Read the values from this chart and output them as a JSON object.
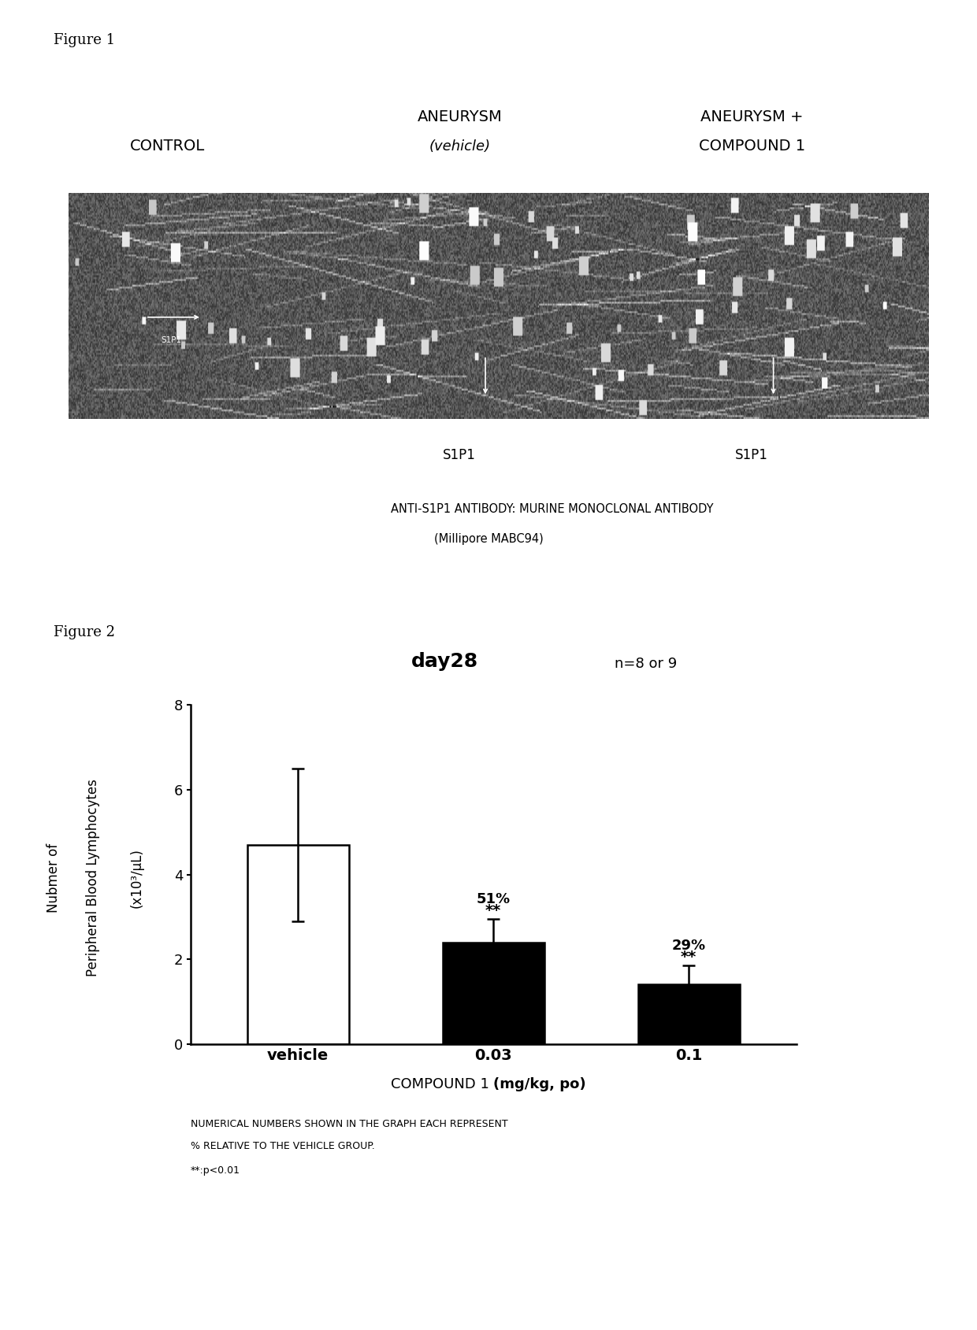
{
  "fig1_label": "Figure 1",
  "fig2_label": "Figure 2",
  "col1_label": "CONTROL",
  "col2_label_l1": "ANEURYSM",
  "col2_label_l2": "(vehicle)",
  "col3_label_l1": "ANEURYSM +",
  "col3_label_l2": "COMPOUND 1",
  "s1p1_label": "S1P1",
  "antibody_line1": "ANTI-S1P1 ANTIBODY: MURINE MONOCLONAL ANTIBODY",
  "antibody_line2": "(Millipore MABC94)",
  "chart_title_bold": "day28",
  "chart_title_normal": "n=8 or 9",
  "ylabel_line1": "Nubmer of",
  "ylabel_line2": "Peripheral Blood Lymphocytes",
  "ylabel_line3": "(x10³/μL)",
  "xlabel_normal": "COMPOUND 1 ",
  "xlabel_bold": "(mg/kg, po)",
  "categories": [
    "vehicle",
    "0.03",
    "0.1"
  ],
  "bar_values": [
    4.7,
    2.4,
    1.4
  ],
  "bar_errors": [
    1.8,
    0.55,
    0.45
  ],
  "bar_colors": [
    "white",
    "black",
    "black"
  ],
  "bar_edge_colors": [
    "black",
    "black",
    "black"
  ],
  "pct_labels": [
    "51%",
    "29%"
  ],
  "sig_labels": [
    "**",
    "**"
  ],
  "ylim": [
    0,
    8
  ],
  "yticks": [
    0,
    2,
    4,
    6,
    8
  ],
  "footnote_line1": "NUMERICAL NUMBERS SHOWN IN THE GRAPH EACH REPRESENT",
  "footnote_line2": "% RELATIVE TO THE VEHICLE GROUP.",
  "footnote_line3": "**:p<0.01",
  "background_color": "#ffffff"
}
